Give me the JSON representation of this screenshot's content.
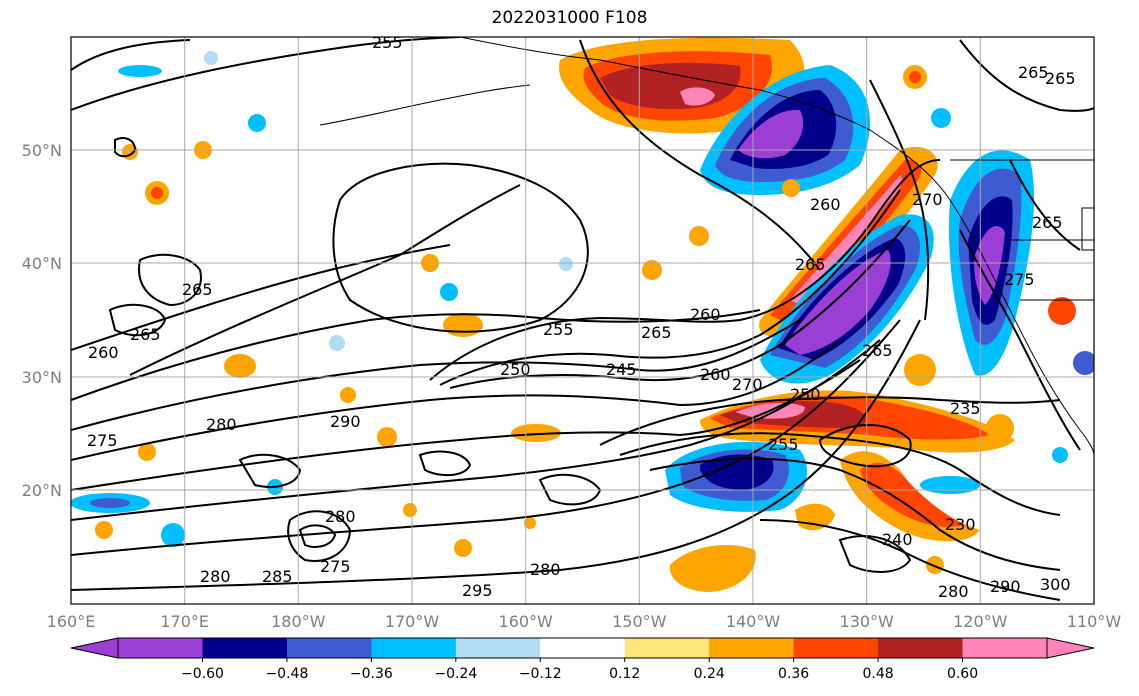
{
  "title": "2022031000 F108",
  "map": {
    "lon_ticks": [
      "160°E",
      "170°E",
      "180°W",
      "170°W",
      "160°W",
      "150°W",
      "140°W",
      "130°W",
      "120°W",
      "110°W"
    ],
    "lat_ticks": [
      "50°N",
      "40°N",
      "30°N",
      "20°N"
    ],
    "contour_labels": [
      "255",
      "260",
      "265",
      "265",
      "260",
      "265",
      "255",
      "260",
      "265",
      "250",
      "245",
      "275",
      "280",
      "290",
      "270",
      "250",
      "255",
      "235",
      "260",
      "265",
      "265",
      "270",
      "265",
      "230",
      "240",
      "280",
      "285",
      "280",
      "280",
      "275",
      "275",
      "295",
      "280",
      "290",
      "300",
      "265"
    ],
    "colorbar": {
      "ticks": [
        "−0.60",
        "−0.48",
        "−0.36",
        "−0.24",
        "−0.12",
        "0.12",
        "0.24",
        "0.36",
        "0.48",
        "0.60"
      ],
      "colors": [
        "#9a3ed6",
        "#00008b",
        "#3f5bd1",
        "#00bfff",
        "#b0dcf5",
        "#ffffff",
        "#ffe47a",
        "#ffa500",
        "#ff4500",
        "#b22222",
        "#ff85b8"
      ]
    }
  }
}
